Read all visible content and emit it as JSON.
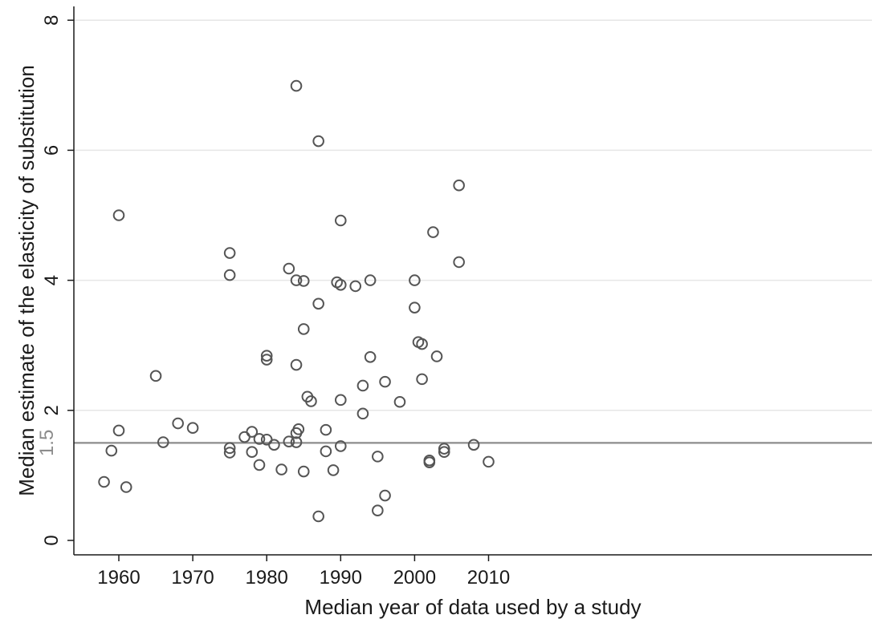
{
  "chart_data": {
    "type": "scatter",
    "title": "",
    "xlabel": "Median year of data used by a study",
    "ylabel": "Median estimate of the elasticity of substitution",
    "xlim": [
      1957,
      2011
    ],
    "ylim": [
      0,
      8
    ],
    "x_ticks": [
      1960,
      1970,
      1980,
      1990,
      2000,
      2010
    ],
    "y_ticks": [
      0,
      2,
      4,
      6,
      8
    ],
    "x_tick_labels": [
      "1960",
      "1970",
      "1980",
      "1990",
      "2000",
      "2010"
    ],
    "y_tick_labels": [
      "0",
      "2",
      "4",
      "6",
      "8"
    ],
    "grid": "horizontal",
    "reference_line": {
      "y": 1.5,
      "label": "1.5",
      "color": "#8c8c8c"
    },
    "marker": "hollow-circle",
    "marker_color": "#555555",
    "points": [
      {
        "x": 1958,
        "y": 0.9
      },
      {
        "x": 1959,
        "y": 1.38
      },
      {
        "x": 1960,
        "y": 5.0
      },
      {
        "x": 1960,
        "y": 1.69
      },
      {
        "x": 1961,
        "y": 0.82
      },
      {
        "x": 1965,
        "y": 2.53
      },
      {
        "x": 1966,
        "y": 1.51
      },
      {
        "x": 1968,
        "y": 1.8
      },
      {
        "x": 1970,
        "y": 1.73
      },
      {
        "x": 1975,
        "y": 4.42
      },
      {
        "x": 1975,
        "y": 4.08
      },
      {
        "x": 1975,
        "y": 1.42
      },
      {
        "x": 1975,
        "y": 1.35
      },
      {
        "x": 1977,
        "y": 1.59
      },
      {
        "x": 1978,
        "y": 1.67
      },
      {
        "x": 1978,
        "y": 1.36
      },
      {
        "x": 1979,
        "y": 1.56
      },
      {
        "x": 1979,
        "y": 1.16
      },
      {
        "x": 1980,
        "y": 2.84
      },
      {
        "x": 1980,
        "y": 2.78
      },
      {
        "x": 1980,
        "y": 1.55
      },
      {
        "x": 1981,
        "y": 1.47
      },
      {
        "x": 1982,
        "y": 1.09
      },
      {
        "x": 1983,
        "y": 4.18
      },
      {
        "x": 1983,
        "y": 1.52
      },
      {
        "x": 1984,
        "y": 6.99
      },
      {
        "x": 1984,
        "y": 4.0
      },
      {
        "x": 1984,
        "y": 2.7
      },
      {
        "x": 1984,
        "y": 1.65
      },
      {
        "x": 1984.3,
        "y": 1.71
      },
      {
        "x": 1984,
        "y": 1.51
      },
      {
        "x": 1985,
        "y": 3.99
      },
      {
        "x": 1985,
        "y": 3.25
      },
      {
        "x": 1985,
        "y": 1.06
      },
      {
        "x": 1985.5,
        "y": 2.21
      },
      {
        "x": 1986,
        "y": 2.14
      },
      {
        "x": 1987,
        "y": 6.14
      },
      {
        "x": 1987,
        "y": 3.64
      },
      {
        "x": 1987,
        "y": 0.37
      },
      {
        "x": 1988,
        "y": 1.7
      },
      {
        "x": 1988,
        "y": 1.37
      },
      {
        "x": 1989,
        "y": 1.08
      },
      {
        "x": 1989.5,
        "y": 3.97
      },
      {
        "x": 1990,
        "y": 4.92
      },
      {
        "x": 1990,
        "y": 3.93
      },
      {
        "x": 1990,
        "y": 2.16
      },
      {
        "x": 1990,
        "y": 1.45
      },
      {
        "x": 1992,
        "y": 3.91
      },
      {
        "x": 1993,
        "y": 2.38
      },
      {
        "x": 1993,
        "y": 1.95
      },
      {
        "x": 1994,
        "y": 4.0
      },
      {
        "x": 1994,
        "y": 2.82
      },
      {
        "x": 1995,
        "y": 1.29
      },
      {
        "x": 1995,
        "y": 0.46
      },
      {
        "x": 1996,
        "y": 2.44
      },
      {
        "x": 1996,
        "y": 0.69
      },
      {
        "x": 1998,
        "y": 2.13
      },
      {
        "x": 2000,
        "y": 4.0
      },
      {
        "x": 2000,
        "y": 3.58
      },
      {
        "x": 2000.5,
        "y": 3.05
      },
      {
        "x": 2001,
        "y": 3.02
      },
      {
        "x": 2001,
        "y": 2.48
      },
      {
        "x": 2002,
        "y": 1.23
      },
      {
        "x": 2002,
        "y": 1.2
      },
      {
        "x": 2002.5,
        "y": 4.74
      },
      {
        "x": 2003,
        "y": 2.83
      },
      {
        "x": 2004,
        "y": 1.41
      },
      {
        "x": 2004,
        "y": 1.36
      },
      {
        "x": 2006,
        "y": 5.46
      },
      {
        "x": 2006,
        "y": 4.28
      },
      {
        "x": 2008,
        "y": 1.47
      },
      {
        "x": 2010,
        "y": 1.21
      }
    ]
  }
}
